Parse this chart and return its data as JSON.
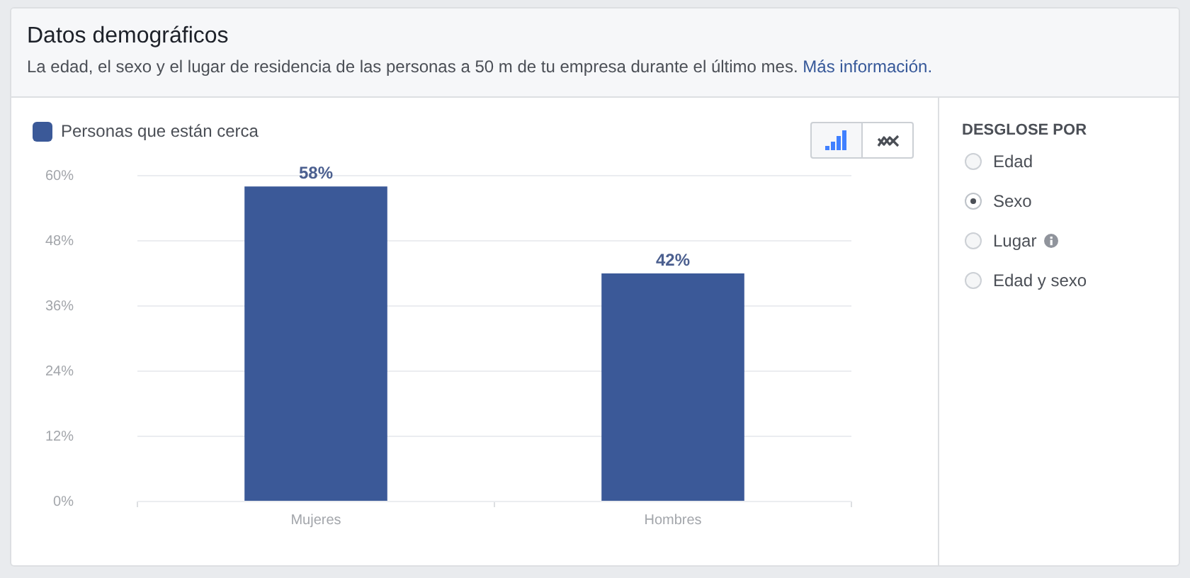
{
  "chart_data": {
    "type": "bar",
    "title": "Datos demográficos",
    "subtitle": "La edad, el sexo y el lugar de residencia de las personas a 50 m de tu empresa durante el último mes.",
    "categories": [
      "Mujeres",
      "Hombres"
    ],
    "series": [
      {
        "name": "Personas que están cerca",
        "color": "#3b5998",
        "values": [
          58,
          42
        ],
        "value_labels": [
          "58%",
          "42%"
        ]
      }
    ],
    "ylim": [
      0,
      60
    ],
    "yticks": [
      {
        "value": 0,
        "label": "0%"
      },
      {
        "value": 12,
        "label": "12%"
      },
      {
        "value": 24,
        "label": "24%"
      },
      {
        "value": 36,
        "label": "36%"
      },
      {
        "value": 48,
        "label": "48%"
      },
      {
        "value": 60,
        "label": "60%"
      }
    ],
    "grid": "y",
    "legend": "top left",
    "annotations": [
      "Más información.",
      "DESGLOSE POR",
      "Edad",
      "Sexo",
      "Lugar",
      "Edad y sexo"
    ]
  }
}
